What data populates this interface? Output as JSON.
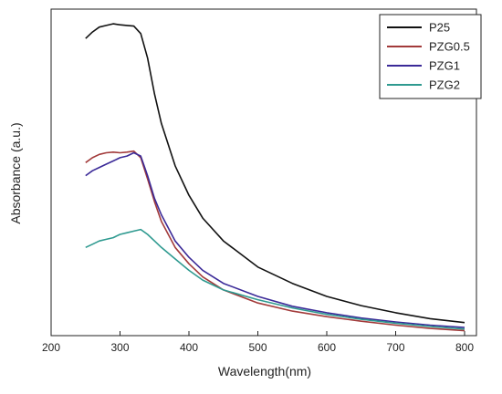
{
  "chart_data": {
    "type": "line",
    "xlabel": "Wavelength(nm)",
    "ylabel": "Absorbance (a.u.)",
    "xlim": [
      200,
      850
    ],
    "ylim": [
      0,
      1
    ],
    "x_ticks": [
      "200",
      "300",
      "400",
      "500",
      "600",
      "700",
      "800"
    ],
    "y_ticks_shown": false,
    "grid": false,
    "legend_position": "top-right",
    "series": [
      {
        "name": "P25",
        "color": "#111111",
        "x": [
          250,
          260,
          270,
          280,
          290,
          300,
          310,
          320,
          330,
          340,
          350,
          360,
          380,
          400,
          420,
          450,
          500,
          550,
          600,
          650,
          700,
          750,
          800
        ],
        "y": [
          0.91,
          0.93,
          0.945,
          0.95,
          0.955,
          0.952,
          0.95,
          0.948,
          0.925,
          0.85,
          0.74,
          0.65,
          0.52,
          0.43,
          0.36,
          0.29,
          0.21,
          0.16,
          0.12,
          0.092,
          0.07,
          0.052,
          0.04
        ]
      },
      {
        "name": "PZG0.5",
        "color": "#a23a3a",
        "x": [
          250,
          260,
          270,
          280,
          290,
          300,
          310,
          320,
          330,
          340,
          350,
          360,
          380,
          400,
          420,
          450,
          500,
          550,
          600,
          650,
          700,
          750,
          800
        ],
        "y": [
          0.53,
          0.545,
          0.555,
          0.56,
          0.562,
          0.56,
          0.562,
          0.565,
          0.545,
          0.48,
          0.41,
          0.35,
          0.27,
          0.22,
          0.18,
          0.14,
          0.1,
          0.075,
          0.058,
          0.044,
          0.032,
          0.022,
          0.015
        ]
      },
      {
        "name": "PZG1",
        "color": "#3b2a98",
        "x": [
          250,
          260,
          270,
          280,
          290,
          300,
          310,
          320,
          330,
          340,
          350,
          360,
          380,
          400,
          420,
          450,
          500,
          550,
          600,
          650,
          700,
          750,
          800
        ],
        "y": [
          0.49,
          0.505,
          0.515,
          0.525,
          0.535,
          0.545,
          0.55,
          0.56,
          0.55,
          0.49,
          0.42,
          0.37,
          0.29,
          0.24,
          0.2,
          0.16,
          0.12,
          0.09,
          0.07,
          0.054,
          0.042,
          0.032,
          0.025
        ]
      },
      {
        "name": "PZG2",
        "color": "#2f9a90",
        "x": [
          250,
          260,
          270,
          280,
          290,
          300,
          310,
          320,
          330,
          340,
          350,
          360,
          380,
          400,
          420,
          450,
          500,
          550,
          600,
          650,
          700,
          750,
          800
        ],
        "y": [
          0.27,
          0.28,
          0.29,
          0.295,
          0.3,
          0.31,
          0.315,
          0.32,
          0.325,
          0.31,
          0.29,
          0.27,
          0.235,
          0.2,
          0.17,
          0.14,
          0.11,
          0.085,
          0.065,
          0.05,
          0.038,
          0.028,
          0.02
        ]
      }
    ]
  }
}
